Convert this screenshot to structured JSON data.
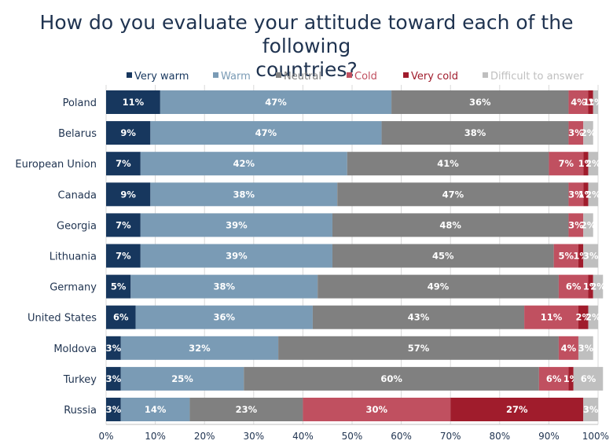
{
  "chart_data": {
    "type": "bar",
    "orientation": "horizontal",
    "stacked": true,
    "title": "How do you evaluate your attitude toward each of the following countries?",
    "title_lines": [
      "How do you evaluate your attitude toward each of the following",
      "countries?"
    ],
    "categories": [
      "Poland",
      "Belarus",
      "European Union",
      "Canada",
      "Georgia",
      "Lithuania",
      "Germany",
      "United States",
      "Moldova",
      "Turkey",
      "Russia"
    ],
    "series": [
      {
        "name": "Very warm",
        "color": "#17375e",
        "label_color": "#ffffff",
        "values": [
          11,
          9,
          7,
          9,
          7,
          7,
          5,
          6,
          3,
          3,
          3
        ]
      },
      {
        "name": "Warm",
        "color": "#7a9bb5",
        "label_color": "#ffffff",
        "values": [
          47,
          47,
          42,
          38,
          39,
          39,
          38,
          36,
          32,
          25,
          14
        ]
      },
      {
        "name": "Neutral",
        "color": "#808080",
        "label_color": "#ffffff",
        "values": [
          36,
          38,
          41,
          47,
          48,
          45,
          49,
          43,
          57,
          60,
          23
        ]
      },
      {
        "name": "Cold",
        "color": "#c05060",
        "label_color": "#ffffff",
        "values": [
          4,
          3,
          7,
          3,
          3,
          5,
          6,
          11,
          4,
          6,
          30
        ]
      },
      {
        "name": "Very cold",
        "color": "#a01c2c",
        "label_color": "#ffffff",
        "values": [
          1,
          null,
          1,
          1,
          null,
          1,
          1,
          2,
          null,
          1,
          27
        ]
      },
      {
        "name": "Difficult to answer",
        "color": "#bfbfbf",
        "label_color": "#ffffff",
        "values": [
          1,
          2,
          2,
          2,
          2,
          3,
          2,
          2,
          3,
          6,
          3
        ]
      }
    ],
    "x_ticks": [
      "0%",
      "10%",
      "20%",
      "30%",
      "40%",
      "50%",
      "60%",
      "70%",
      "80%",
      "90%",
      "100%"
    ],
    "xlim": [
      0,
      100
    ],
    "legend_position": "top",
    "grid": "vertical"
  }
}
